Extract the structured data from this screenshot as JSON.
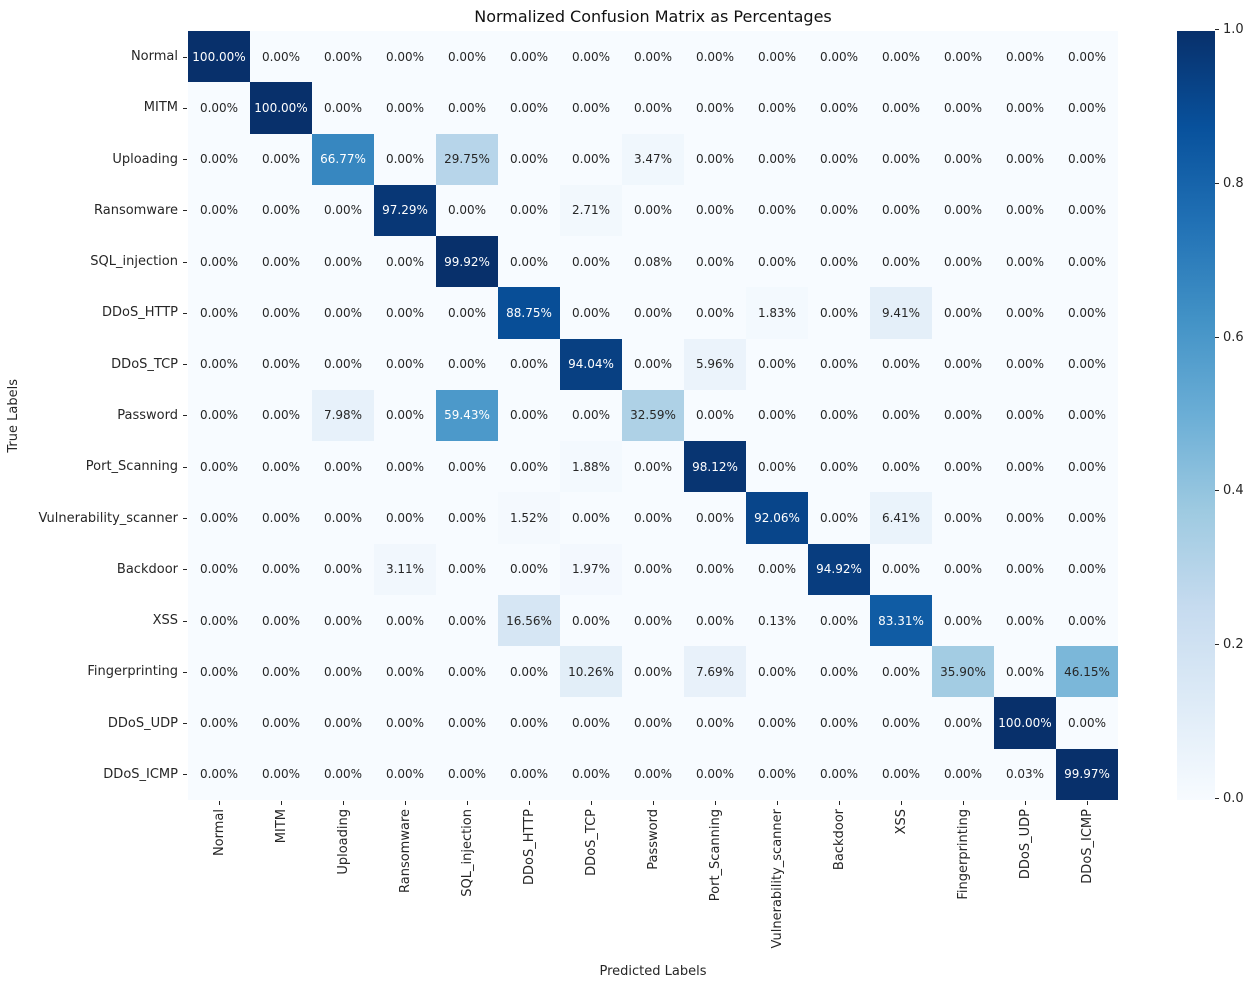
{
  "chart_data": {
    "type": "heatmap",
    "title": "Normalized Confusion Matrix as Percentages",
    "xlabel": "Predicted Labels",
    "ylabel": "True Labels",
    "categories": [
      "Normal",
      "MITM",
      "Uploading",
      "Ransomware",
      "SQL_injection",
      "DDoS_HTTP",
      "DDoS_TCP",
      "Password",
      "Port_Scanning",
      "Vulnerability_scanner",
      "Backdoor",
      "XSS",
      "Fingerprinting",
      "DDoS_UDP",
      "DDoS_ICMP"
    ],
    "values_percent": [
      [
        100,
        0,
        0,
        0,
        0,
        0,
        0,
        0,
        0,
        0,
        0,
        0,
        0,
        0,
        0
      ],
      [
        0,
        100,
        0,
        0,
        0,
        0,
        0,
        0,
        0,
        0,
        0,
        0,
        0,
        0,
        0
      ],
      [
        0,
        0,
        66.77,
        0,
        29.75,
        0,
        0,
        3.47,
        0,
        0,
        0,
        0,
        0,
        0,
        0
      ],
      [
        0,
        0,
        0,
        97.29,
        0,
        0,
        2.71,
        0,
        0,
        0,
        0,
        0,
        0,
        0,
        0
      ],
      [
        0,
        0,
        0,
        0,
        99.92,
        0,
        0,
        0.08,
        0,
        0,
        0,
        0,
        0,
        0,
        0
      ],
      [
        0,
        0,
        0,
        0,
        0,
        88.75,
        0,
        0,
        0,
        1.83,
        0,
        9.41,
        0,
        0,
        0
      ],
      [
        0,
        0,
        0,
        0,
        0,
        0,
        94.04,
        0,
        5.96,
        0,
        0,
        0,
        0,
        0,
        0
      ],
      [
        0,
        0,
        7.98,
        0,
        59.43,
        0,
        0,
        32.59,
        0,
        0,
        0,
        0,
        0,
        0,
        0
      ],
      [
        0,
        0,
        0,
        0,
        0,
        0,
        1.88,
        0,
        98.12,
        0,
        0,
        0,
        0,
        0,
        0
      ],
      [
        0,
        0,
        0,
        0,
        0,
        1.52,
        0,
        0,
        0,
        92.06,
        0,
        6.41,
        0,
        0,
        0
      ],
      [
        0,
        0,
        0,
        3.11,
        0,
        0,
        1.97,
        0,
        0,
        0,
        94.92,
        0,
        0,
        0,
        0
      ],
      [
        0,
        0,
        0,
        0,
        0,
        16.56,
        0,
        0,
        0,
        0.13,
        0,
        83.31,
        0,
        0,
        0
      ],
      [
        0,
        0,
        0,
        0,
        0,
        0,
        10.26,
        0,
        7.69,
        0,
        0,
        0,
        35.9,
        0,
        46.15
      ],
      [
        0,
        0,
        0,
        0,
        0,
        0,
        0,
        0,
        0,
        0,
        0,
        0,
        0,
        100,
        0
      ],
      [
        0,
        0,
        0,
        0,
        0,
        0,
        0,
        0,
        0,
        0,
        0,
        0,
        0,
        0.03,
        99.97
      ]
    ],
    "value_format": "0.00%",
    "vmin": 0,
    "vmax": 1,
    "colorbar_ticks": [
      "1.0",
      "0.8",
      "0.6",
      "0.4",
      "0.2",
      "0.0"
    ],
    "legend_position": "right-colorbar",
    "grid": false,
    "colors": {
      "colormap_name": "Blues",
      "cmap_anchors": [
        "#f7fbff",
        "#deebf7",
        "#c6dbef",
        "#9ecae1",
        "#6baed6",
        "#4292c6",
        "#2171b5",
        "#08519c",
        "#08306b"
      ],
      "background": "#ffffff",
      "annotation_dark_text": "#262626",
      "annotation_light_text": "#ffffff"
    }
  }
}
